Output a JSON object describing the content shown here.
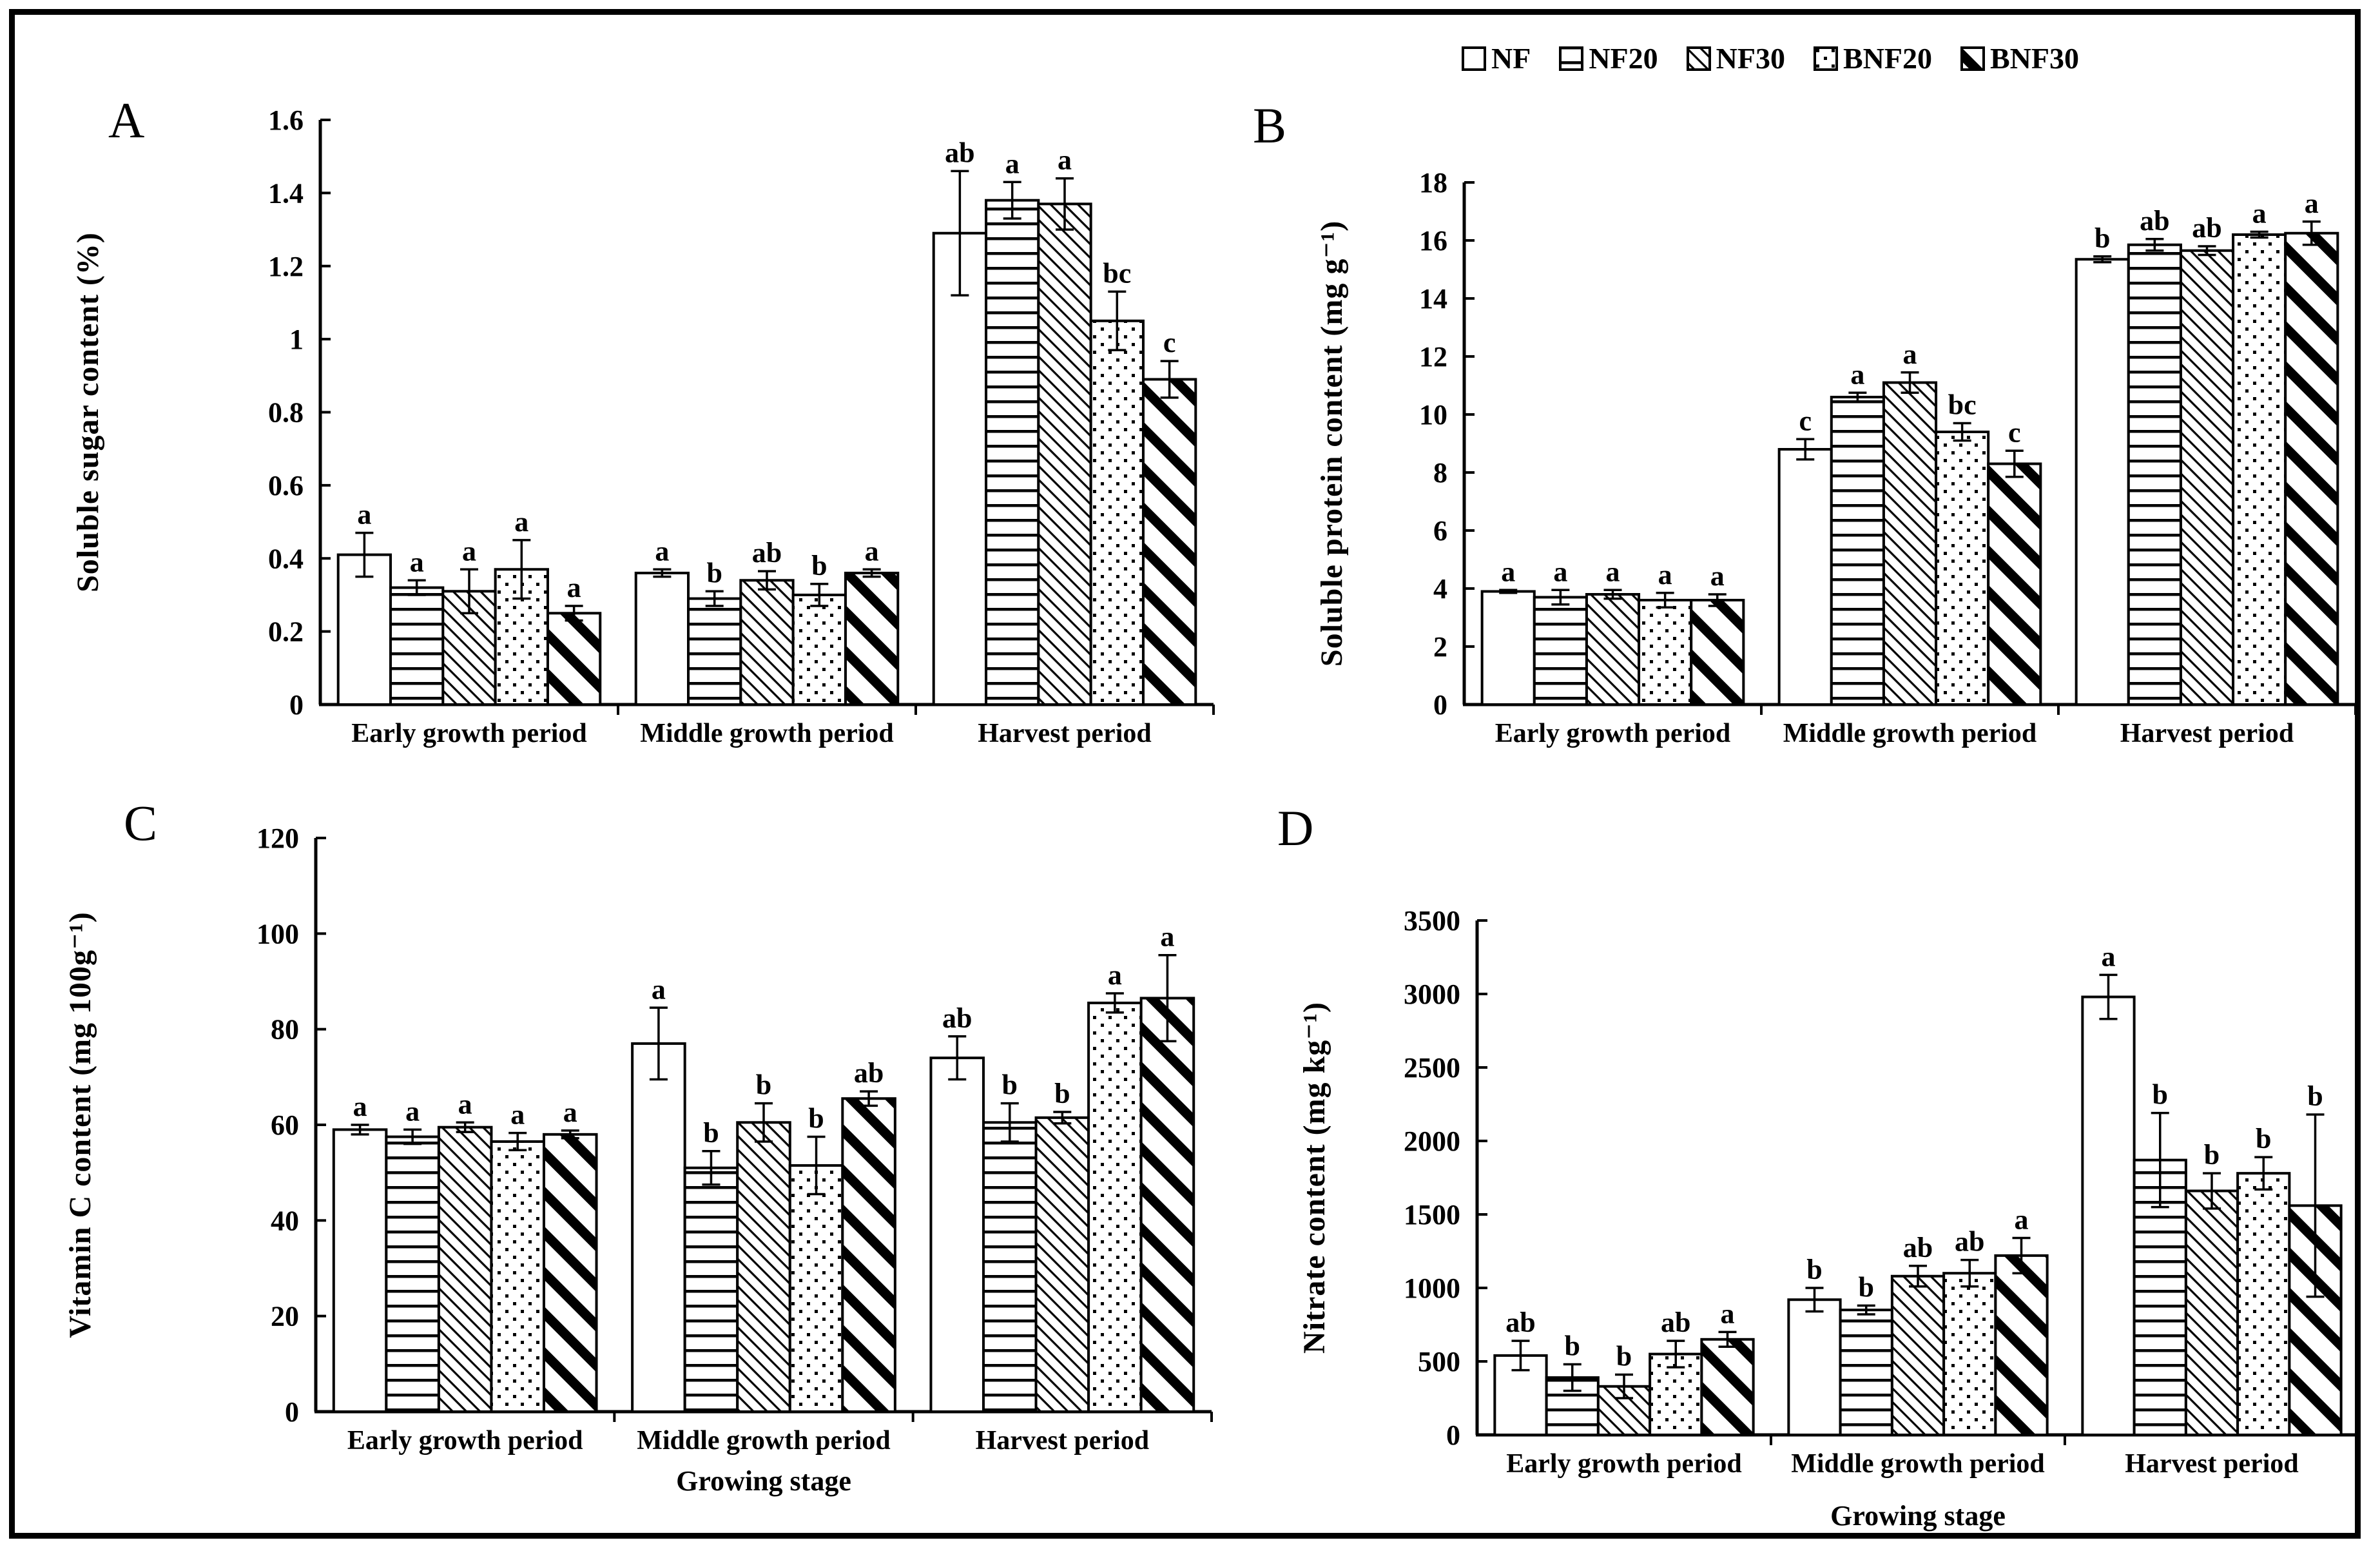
{
  "legend": {
    "items": [
      "NF",
      "NF20",
      "NF30",
      "BNF20",
      "BNF30"
    ]
  },
  "colors": {
    "foreground": "#000000",
    "background": "#ffffff"
  },
  "pattern_names": {
    "NF": "solid-white",
    "NF20": "horizontal-lines",
    "NF30": "thin-diagonal-hatch",
    "BNF20": "dots",
    "BNF30": "bold-diagonal-stripes"
  },
  "chart_data": [
    {
      "type": "bar",
      "panel_label": "A",
      "title": "",
      "ylabel": "Soluble sugar content (%)",
      "xlabel": "",
      "ylim": [
        0,
        1.6
      ],
      "ytick_labels": [
        "0",
        "0.2",
        "0.4",
        "0.6",
        "0.8",
        "1",
        "1.2",
        "1.4",
        "1.6"
      ],
      "grid": false,
      "error_bars": true,
      "categories": [
        "Early growth period",
        "Middle growth period",
        "Harvest period"
      ],
      "series": [
        {
          "name": "NF",
          "pattern": "solid-white",
          "values": [
            0.41,
            0.36,
            1.29
          ],
          "errors": [
            0.06,
            0.01,
            0.17
          ],
          "sig_letters": [
            "a",
            "a",
            "ab"
          ]
        },
        {
          "name": "NF20",
          "pattern": "horizontal-lines",
          "values": [
            0.32,
            0.29,
            1.38
          ],
          "errors": [
            0.02,
            0.02,
            0.05
          ],
          "sig_letters": [
            "a",
            "b",
            "a"
          ]
        },
        {
          "name": "NF30",
          "pattern": "thin-diagonal-hatch",
          "values": [
            0.31,
            0.34,
            1.37
          ],
          "errors": [
            0.06,
            0.025,
            0.07
          ],
          "sig_letters": [
            "a",
            "ab",
            "a"
          ]
        },
        {
          "name": "BNF20",
          "pattern": "dots",
          "values": [
            0.37,
            0.3,
            1.05
          ],
          "errors": [
            0.08,
            0.03,
            0.08
          ],
          "sig_letters": [
            "a",
            "b",
            "bc"
          ]
        },
        {
          "name": "BNF30",
          "pattern": "bold-diagonal-stripes",
          "values": [
            0.25,
            0.36,
            0.89
          ],
          "errors": [
            0.02,
            0.01,
            0.05
          ],
          "sig_letters": [
            "a",
            "a",
            "c"
          ]
        }
      ]
    },
    {
      "type": "bar",
      "panel_label": "B",
      "title": "",
      "ylabel": "Soluble protein content (mg g⁻¹)",
      "xlabel": "",
      "ylim": [
        0,
        18
      ],
      "ytick_labels": [
        "0",
        "2",
        "4",
        "6",
        "8",
        "10",
        "12",
        "14",
        "16",
        "18"
      ],
      "grid": false,
      "error_bars": true,
      "categories": [
        "Early growth period",
        "Middle growth period",
        "Harvest period"
      ],
      "series": [
        {
          "name": "NF",
          "pattern": "solid-white",
          "values": [
            3.9,
            8.8,
            15.35
          ],
          "errors": [
            0.05,
            0.35,
            0.1
          ],
          "sig_letters": [
            "a",
            "c",
            "b"
          ]
        },
        {
          "name": "NF20",
          "pattern": "horizontal-lines",
          "values": [
            3.7,
            10.6,
            15.85
          ],
          "errors": [
            0.25,
            0.15,
            0.2
          ],
          "sig_letters": [
            "a",
            "a",
            "ab"
          ]
        },
        {
          "name": "NF30",
          "pattern": "thin-diagonal-hatch",
          "values": [
            3.8,
            11.1,
            15.65
          ],
          "errors": [
            0.15,
            0.35,
            0.15
          ],
          "sig_letters": [
            "a",
            "a",
            "ab"
          ]
        },
        {
          "name": "BNF20",
          "pattern": "dots",
          "values": [
            3.6,
            9.4,
            16.2
          ],
          "errors": [
            0.25,
            0.3,
            0.1
          ],
          "sig_letters": [
            "a",
            "bc",
            "a"
          ]
        },
        {
          "name": "BNF30",
          "pattern": "bold-diagonal-stripes",
          "values": [
            3.6,
            8.3,
            16.25
          ],
          "errors": [
            0.2,
            0.45,
            0.4
          ],
          "sig_letters": [
            "a",
            "c",
            "a"
          ]
        }
      ]
    },
    {
      "type": "bar",
      "panel_label": "C",
      "title": "",
      "ylabel": "Vitamin C content (mg 100g⁻¹)",
      "xlabel": "Growing stage",
      "ylim": [
        0,
        120
      ],
      "ytick_labels": [
        "0",
        "20",
        "40",
        "60",
        "80",
        "100",
        "120"
      ],
      "grid": false,
      "error_bars": true,
      "categories": [
        "Early growth period",
        "Middle growth period",
        "Harvest period"
      ],
      "series": [
        {
          "name": "NF",
          "pattern": "solid-white",
          "values": [
            59,
            77,
            74
          ],
          "errors": [
            1,
            7.5,
            4.5
          ],
          "sig_letters": [
            "a",
            "a",
            "ab"
          ]
        },
        {
          "name": "NF20",
          "pattern": "horizontal-lines",
          "values": [
            57.5,
            51,
            60.5
          ],
          "errors": [
            1.5,
            3.5,
            4
          ],
          "sig_letters": [
            "a",
            "b",
            "b"
          ]
        },
        {
          "name": "NF30",
          "pattern": "thin-diagonal-hatch",
          "values": [
            59.5,
            60.5,
            61.5
          ],
          "errors": [
            1,
            4,
            1.2
          ],
          "sig_letters": [
            "a",
            "b",
            "b"
          ]
        },
        {
          "name": "BNF20",
          "pattern": "dots",
          "values": [
            56.5,
            51.5,
            85.5
          ],
          "errors": [
            1.8,
            6,
            2
          ],
          "sig_letters": [
            "a",
            "b",
            "a"
          ]
        },
        {
          "name": "BNF30",
          "pattern": "bold-diagonal-stripes",
          "values": [
            58,
            65.5,
            86.5
          ],
          "errors": [
            0.8,
            1.5,
            9
          ],
          "sig_letters": [
            "a",
            "ab",
            "a"
          ]
        }
      ]
    },
    {
      "type": "bar",
      "panel_label": "D",
      "title": "",
      "ylabel": "Nitrate content (mg kg⁻¹)",
      "xlabel": "Growing stage",
      "ylim": [
        0,
        3500
      ],
      "ytick_labels": [
        "0",
        "500",
        "1000",
        "1500",
        "2000",
        "2500",
        "3000",
        "3500"
      ],
      "grid": false,
      "error_bars": true,
      "categories": [
        "Early growth period",
        "Middle growth period",
        "Harvest period"
      ],
      "series": [
        {
          "name": "NF",
          "pattern": "solid-white",
          "values": [
            540,
            920,
            2980
          ],
          "errors": [
            100,
            80,
            150
          ],
          "sig_letters": [
            "ab",
            "b",
            "a"
          ]
        },
        {
          "name": "NF20",
          "pattern": "horizontal-lines",
          "values": [
            390,
            850,
            1870
          ],
          "errors": [
            90,
            30,
            320
          ],
          "sig_letters": [
            "b",
            "b",
            "b"
          ]
        },
        {
          "name": "NF30",
          "pattern": "thin-diagonal-hatch",
          "values": [
            330,
            1080,
            1660
          ],
          "errors": [
            80,
            70,
            120
          ],
          "sig_letters": [
            "b",
            "ab",
            "b"
          ]
        },
        {
          "name": "BNF20",
          "pattern": "dots",
          "values": [
            550,
            1100,
            1780
          ],
          "errors": [
            90,
            90,
            110
          ],
          "sig_letters": [
            "ab",
            "ab",
            "b"
          ]
        },
        {
          "name": "BNF30",
          "pattern": "bold-diagonal-stripes",
          "values": [
            650,
            1220,
            1560
          ],
          "errors": [
            50,
            120,
            620
          ],
          "sig_letters": [
            "a",
            "a",
            "b"
          ]
        }
      ]
    }
  ]
}
